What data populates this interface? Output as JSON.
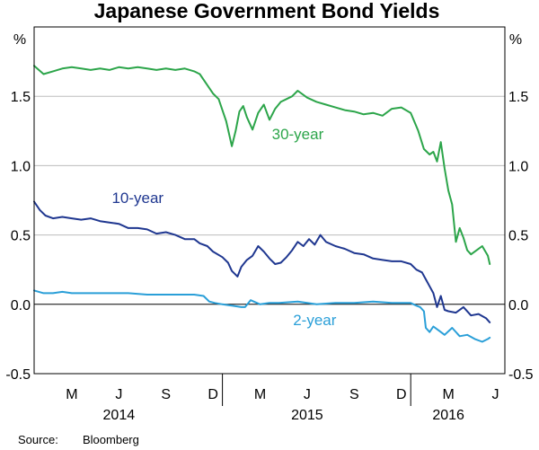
{
  "chart_data": {
    "type": "line",
    "title": "Japanese Government Bond Yields",
    "unit_left": "%",
    "unit_right": "%",
    "ylim": [
      -0.5,
      2.0
    ],
    "y_ticks": [
      -0.5,
      0.0,
      0.5,
      1.0,
      1.5
    ],
    "y_tick_labels": [
      "-0.5",
      "0.0",
      "0.5",
      "1.0",
      "1.5"
    ],
    "x_range": [
      2014.0,
      2016.5
    ],
    "x_month_ticks": [
      {
        "label": "M",
        "x": 2014.2
      },
      {
        "label": "J",
        "x": 2014.45
      },
      {
        "label": "S",
        "x": 2014.7
      },
      {
        "label": "D",
        "x": 2014.95
      },
      {
        "label": "M",
        "x": 2015.2
      },
      {
        "label": "J",
        "x": 2015.45
      },
      {
        "label": "S",
        "x": 2015.7
      },
      {
        "label": "D",
        "x": 2015.95
      },
      {
        "label": "M",
        "x": 2016.2
      },
      {
        "label": "J",
        "x": 2016.45
      }
    ],
    "x_year_labels": [
      {
        "label": "2014",
        "x": 2014.45
      },
      {
        "label": "2015",
        "x": 2015.45
      },
      {
        "label": "2016",
        "x": 2016.2
      }
    ],
    "series": [
      {
        "name": "30-year",
        "color": "#2ca54a",
        "x": [
          2014.0,
          2014.05,
          2014.1,
          2014.15,
          2014.2,
          2014.25,
          2014.3,
          2014.35,
          2014.4,
          2014.45,
          2014.5,
          2014.55,
          2014.6,
          2014.65,
          2014.7,
          2014.75,
          2014.8,
          2014.85,
          2014.88,
          2014.92,
          2014.95,
          2014.98,
          2015.02,
          2015.05,
          2015.07,
          2015.09,
          2015.11,
          2015.13,
          2015.16,
          2015.19,
          2015.22,
          2015.25,
          2015.28,
          2015.31,
          2015.34,
          2015.37,
          2015.4,
          2015.45,
          2015.5,
          2015.55,
          2015.6,
          2015.65,
          2015.7,
          2015.75,
          2015.8,
          2015.85,
          2015.9,
          2015.95,
          2016.0,
          2016.04,
          2016.07,
          2016.1,
          2016.12,
          2016.14,
          2016.16,
          2016.18,
          2016.2,
          2016.22,
          2016.24,
          2016.26,
          2016.28,
          2016.3,
          2016.32,
          2016.35,
          2016.38,
          2016.41,
          2016.42
        ],
        "values": [
          1.72,
          1.66,
          1.68,
          1.7,
          1.71,
          1.7,
          1.69,
          1.7,
          1.69,
          1.71,
          1.7,
          1.71,
          1.7,
          1.69,
          1.7,
          1.69,
          1.7,
          1.68,
          1.66,
          1.58,
          1.52,
          1.48,
          1.32,
          1.14,
          1.25,
          1.39,
          1.43,
          1.35,
          1.26,
          1.38,
          1.44,
          1.33,
          1.41,
          1.46,
          1.48,
          1.5,
          1.54,
          1.49,
          1.46,
          1.44,
          1.42,
          1.4,
          1.39,
          1.37,
          1.38,
          1.36,
          1.41,
          1.42,
          1.38,
          1.25,
          1.12,
          1.08,
          1.1,
          1.03,
          1.17,
          0.98,
          0.82,
          0.72,
          0.45,
          0.55,
          0.48,
          0.39,
          0.36,
          0.39,
          0.42,
          0.35,
          0.29
        ]
      },
      {
        "name": "10-year",
        "color": "#1f3790",
        "x": [
          2014.0,
          2014.03,
          2014.06,
          2014.1,
          2014.15,
          2014.2,
          2014.25,
          2014.3,
          2014.35,
          2014.4,
          2014.45,
          2014.5,
          2014.55,
          2014.6,
          2014.65,
          2014.7,
          2014.75,
          2014.8,
          2014.85,
          2014.88,
          2014.92,
          2014.95,
          2015.0,
          2015.03,
          2015.05,
          2015.08,
          2015.1,
          2015.13,
          2015.16,
          2015.19,
          2015.22,
          2015.25,
          2015.28,
          2015.31,
          2015.34,
          2015.37,
          2015.4,
          2015.43,
          2015.46,
          2015.49,
          2015.52,
          2015.55,
          2015.6,
          2015.65,
          2015.7,
          2015.75,
          2015.8,
          2015.85,
          2015.9,
          2015.95,
          2016.0,
          2016.03,
          2016.06,
          2016.08,
          2016.1,
          2016.12,
          2016.14,
          2016.16,
          2016.18,
          2016.2,
          2016.24,
          2016.28,
          2016.32,
          2016.36,
          2016.4,
          2016.42
        ],
        "values": [
          0.74,
          0.68,
          0.64,
          0.62,
          0.63,
          0.62,
          0.61,
          0.62,
          0.6,
          0.59,
          0.58,
          0.55,
          0.55,
          0.54,
          0.51,
          0.52,
          0.5,
          0.47,
          0.47,
          0.44,
          0.42,
          0.38,
          0.34,
          0.3,
          0.24,
          0.2,
          0.27,
          0.32,
          0.35,
          0.42,
          0.38,
          0.33,
          0.29,
          0.3,
          0.34,
          0.39,
          0.45,
          0.42,
          0.47,
          0.43,
          0.5,
          0.45,
          0.42,
          0.4,
          0.37,
          0.36,
          0.33,
          0.32,
          0.31,
          0.31,
          0.29,
          0.25,
          0.23,
          0.18,
          0.13,
          0.08,
          -0.02,
          0.06,
          -0.04,
          -0.05,
          -0.06,
          -0.02,
          -0.08,
          -0.07,
          -0.1,
          -0.13
        ]
      },
      {
        "name": "2-year",
        "color": "#2a9fd8",
        "x": [
          2014.0,
          2014.05,
          2014.1,
          2014.15,
          2014.2,
          2014.3,
          2014.4,
          2014.5,
          2014.6,
          2014.7,
          2014.8,
          2014.85,
          2014.9,
          2014.93,
          2014.96,
          2015.0,
          2015.05,
          2015.1,
          2015.12,
          2015.15,
          2015.2,
          2015.25,
          2015.3,
          2015.4,
          2015.5,
          2015.6,
          2015.7,
          2015.8,
          2015.9,
          2015.95,
          2016.0,
          2016.03,
          2016.05,
          2016.07,
          2016.08,
          2016.1,
          2016.12,
          2016.15,
          2016.18,
          2016.22,
          2016.26,
          2016.3,
          2016.34,
          2016.38,
          2016.41,
          2016.42
        ],
        "values": [
          0.1,
          0.08,
          0.08,
          0.09,
          0.08,
          0.08,
          0.08,
          0.08,
          0.07,
          0.07,
          0.07,
          0.07,
          0.06,
          0.02,
          0.01,
          0.0,
          -0.01,
          -0.02,
          -0.02,
          0.03,
          0.0,
          0.01,
          0.01,
          0.02,
          0.0,
          0.01,
          0.01,
          0.02,
          0.01,
          0.01,
          0.01,
          -0.01,
          -0.02,
          -0.05,
          -0.17,
          -0.2,
          -0.16,
          -0.19,
          -0.22,
          -0.17,
          -0.23,
          -0.22,
          -0.25,
          -0.27,
          -0.25,
          -0.24
        ]
      }
    ],
    "series_labels": [
      {
        "text": "30-year",
        "series": "30-year",
        "x": 2015.4,
        "y": 1.19
      },
      {
        "text": "10-year",
        "series": "10-year",
        "x": 2014.55,
        "y": 0.73
      },
      {
        "text": "2-year",
        "series": "2-year",
        "x": 2015.49,
        "y": -0.15
      }
    ],
    "grid": true,
    "source_label": "Source:",
    "source_text": "Bloomberg"
  }
}
